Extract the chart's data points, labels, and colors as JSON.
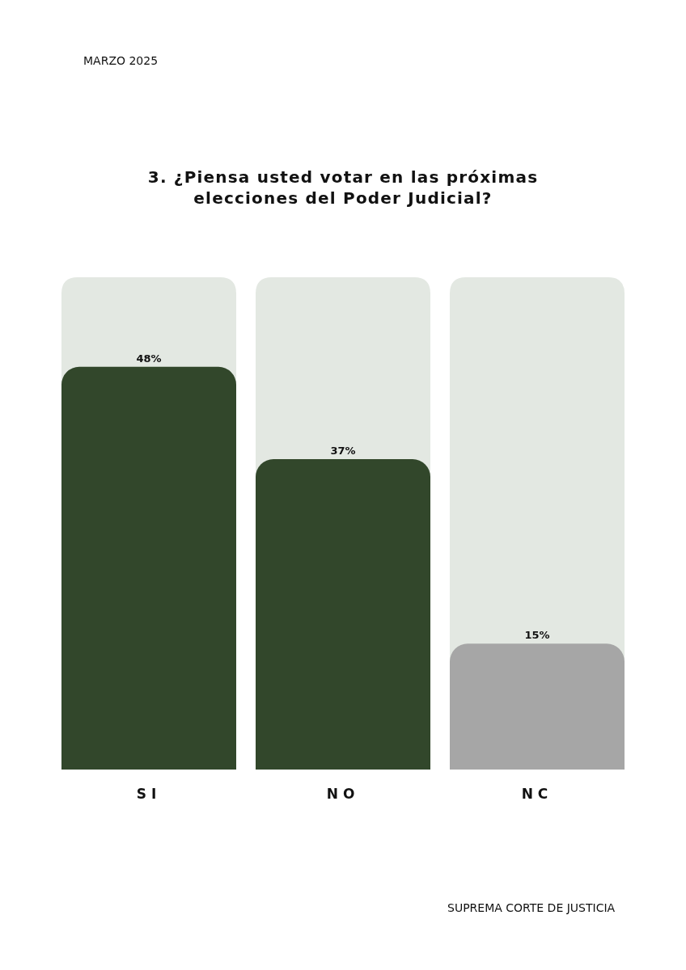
{
  "chart_data": {
    "type": "bar",
    "title": "3. ¿Piensa usted votar en las próximas elecciones del Poder Judicial?",
    "categories": [
      "SI",
      "NO",
      "NC"
    ],
    "values": [
      48,
      37,
      15
    ],
    "colors": [
      "#32472b",
      "#32472b",
      "#a6a6a6"
    ],
    "value_labels": [
      "48%",
      "37%",
      "15%"
    ],
    "tick_labels": "x",
    "annotations": [
      "MARZO 2025",
      "SUPREMA CORTE DE JUSTICIA"
    ]
  }
}
